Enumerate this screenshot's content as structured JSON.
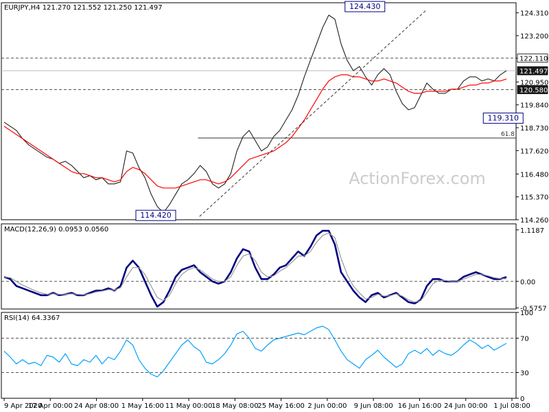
{
  "chart_data": [
    {
      "type": "line",
      "panel": "price",
      "title": "EURJPY,H4  121.270 121.552 121.250 121.497",
      "watermark": "ActionForex.com",
      "ylim": [
        114.26,
        124.8
      ],
      "y_ticks": [
        124.31,
        123.2,
        122.11,
        120.95,
        119.84,
        118.73,
        117.62,
        116.48,
        115.37,
        114.26
      ],
      "x_labels": [
        "9 Apr 2020",
        "17 Apr 00:00",
        "24 Apr 08:00",
        "1 May 16:00",
        "11 May 00:00",
        "18 May 08:00",
        "25 May 16:00",
        "2 Jun 00:00",
        "9 Jun 08:00",
        "16 Jun 16:00",
        "24 Jun 00:00",
        "1 Jul 08:00"
      ],
      "series": [
        {
          "role": "price",
          "values": [
            119.0,
            118.8,
            118.6,
            118.2,
            117.9,
            117.7,
            117.5,
            117.3,
            117.2,
            117.0,
            117.1,
            116.9,
            116.6,
            116.3,
            116.4,
            116.2,
            116.3,
            116.0,
            116.0,
            116.1,
            117.6,
            117.5,
            116.8,
            116.3,
            115.5,
            114.9,
            114.6,
            115.0,
            115.5,
            116.0,
            116.2,
            116.5,
            116.9,
            116.6,
            116.0,
            115.8,
            116.0,
            116.5,
            117.6,
            118.3,
            118.6,
            118.1,
            117.6,
            117.8,
            118.3,
            118.6,
            119.1,
            119.6,
            120.3,
            121.2,
            122.0,
            122.8,
            123.6,
            124.2,
            124.0,
            122.8,
            122.0,
            121.5,
            121.7,
            121.2,
            120.8,
            121.3,
            121.6,
            121.3,
            120.5,
            119.9,
            119.6,
            119.7,
            120.3,
            120.9,
            120.6,
            120.4,
            120.4,
            120.6,
            120.6,
            121.0,
            121.2,
            121.2,
            121.0,
            121.1,
            121.0,
            121.3,
            121.5
          ]
        },
        {
          "role": "moving-average",
          "color": "#ff0000",
          "values": [
            118.8,
            118.6,
            118.4,
            118.2,
            118.0,
            117.8,
            117.6,
            117.4,
            117.2,
            117.0,
            116.8,
            116.6,
            116.5,
            116.5,
            116.4,
            116.3,
            116.3,
            116.2,
            116.1,
            116.2,
            116.6,
            116.8,
            116.7,
            116.5,
            116.2,
            115.9,
            115.8,
            115.8,
            115.8,
            115.9,
            116.0,
            116.1,
            116.2,
            116.2,
            116.1,
            116.0,
            116.1,
            116.3,
            116.6,
            116.9,
            117.2,
            117.3,
            117.4,
            117.5,
            117.6,
            117.8,
            118.0,
            118.3,
            118.7,
            119.1,
            119.6,
            120.1,
            120.6,
            121.0,
            121.2,
            121.3,
            121.3,
            121.2,
            121.2,
            121.1,
            121.0,
            121.0,
            121.1,
            121.0,
            120.9,
            120.7,
            120.5,
            120.4,
            120.4,
            120.5,
            120.5,
            120.5,
            120.5,
            120.6,
            120.6,
            120.7,
            120.8,
            120.8,
            120.9,
            120.9,
            121.0,
            121.0,
            121.1
          ]
        }
      ],
      "horizontal_lines": [
        {
          "value": 122.11,
          "style": "dashed"
        },
        {
          "value": 121.497,
          "style": "solid",
          "color": "#bbbbbb"
        },
        {
          "value": 120.58,
          "style": "dashed"
        }
      ],
      "price_labels": [
        {
          "value": 122.11,
          "text": "122.110",
          "dark": false
        },
        {
          "value": 121.497,
          "text": "121.497",
          "dark": true
        },
        {
          "value": 120.58,
          "text": "120.580",
          "dark": true
        }
      ],
      "fib_level": {
        "value": 118.23,
        "label": "61.8",
        "x_start": 38.2
      },
      "trendline": {
        "from": {
          "x": 38.5,
          "y": 114.42
        },
        "to": {
          "x": 82.5,
          "y": 124.43
        }
      },
      "annotations": [
        {
          "text": "124.430",
          "x": 74.5,
          "y": 124.43,
          "anchor": "end"
        },
        {
          "text": "114.420",
          "x": 30.0,
          "y": 114.42,
          "anchor": "middle"
        },
        {
          "text": "119.310",
          "x": 97.5,
          "y": 119.31,
          "anchor": "middle"
        }
      ]
    },
    {
      "type": "line",
      "panel": "macd",
      "title": "MACD(12,26,9) 0.0953 0.0560",
      "ylim": [
        -0.6,
        1.25
      ],
      "y_ticks": [
        1.1187,
        0.0,
        -0.5757
      ],
      "y_tick_labels": [
        "1.1187",
        "0.00",
        "-0.5757"
      ],
      "series": [
        {
          "role": "macd",
          "color": "#000080",
          "values": [
            0.1,
            0.05,
            -0.1,
            -0.15,
            -0.2,
            -0.25,
            -0.3,
            -0.3,
            -0.25,
            -0.3,
            -0.28,
            -0.25,
            -0.3,
            -0.3,
            -0.25,
            -0.2,
            -0.2,
            -0.15,
            -0.2,
            -0.1,
            0.3,
            0.45,
            0.3,
            0.0,
            -0.3,
            -0.55,
            -0.45,
            -0.2,
            0.1,
            0.25,
            0.3,
            0.35,
            0.2,
            0.1,
            0.0,
            -0.05,
            0.0,
            0.2,
            0.5,
            0.7,
            0.65,
            0.3,
            0.05,
            0.05,
            0.15,
            0.3,
            0.35,
            0.5,
            0.65,
            0.55,
            0.75,
            1.0,
            1.1,
            1.1,
            0.8,
            0.2,
            0.0,
            -0.2,
            -0.35,
            -0.45,
            -0.3,
            -0.25,
            -0.35,
            -0.3,
            -0.25,
            -0.35,
            -0.45,
            -0.48,
            -0.4,
            -0.1,
            0.05,
            0.05,
            0.0,
            0.0,
            0.0,
            0.1,
            0.15,
            0.2,
            0.15,
            0.1,
            0.05,
            0.05,
            0.095
          ]
        },
        {
          "role": "signal",
          "color": "#999999",
          "values": [
            0.1,
            0.08,
            0.0,
            -0.08,
            -0.14,
            -0.2,
            -0.25,
            -0.28,
            -0.27,
            -0.28,
            -0.28,
            -0.27,
            -0.28,
            -0.29,
            -0.27,
            -0.23,
            -0.21,
            -0.18,
            -0.19,
            -0.14,
            0.1,
            0.3,
            0.3,
            0.15,
            -0.1,
            -0.35,
            -0.42,
            -0.3,
            -0.05,
            0.15,
            0.25,
            0.3,
            0.25,
            0.15,
            0.05,
            0.0,
            0.0,
            0.1,
            0.35,
            0.55,
            0.6,
            0.45,
            0.2,
            0.1,
            0.12,
            0.22,
            0.3,
            0.42,
            0.55,
            0.55,
            0.65,
            0.85,
            1.0,
            1.05,
            0.95,
            0.5,
            0.15,
            -0.1,
            -0.25,
            -0.38,
            -0.35,
            -0.28,
            -0.32,
            -0.31,
            -0.27,
            -0.32,
            -0.4,
            -0.45,
            -0.42,
            -0.25,
            -0.05,
            0.02,
            0.02,
            0.0,
            0.0,
            0.05,
            0.1,
            0.15,
            0.15,
            0.12,
            0.08,
            0.06,
            0.056
          ]
        }
      ],
      "horizontal_lines": [
        {
          "value": 0.0,
          "style": "dashed"
        }
      ]
    },
    {
      "type": "line",
      "panel": "rsi",
      "title": "RSI(14) 64.3367",
      "ylim": [
        0,
        100
      ],
      "y_ticks": [
        100,
        70,
        30,
        0
      ],
      "series": [
        {
          "role": "rsi",
          "color": "#00a0ff",
          "values": [
            55,
            48,
            40,
            45,
            40,
            42,
            38,
            50,
            48,
            42,
            52,
            40,
            38,
            45,
            42,
            50,
            40,
            48,
            45,
            55,
            68,
            62,
            45,
            35,
            28,
            25,
            32,
            42,
            52,
            62,
            68,
            60,
            55,
            42,
            40,
            45,
            52,
            62,
            75,
            78,
            70,
            58,
            55,
            62,
            68,
            70,
            72,
            74,
            76,
            74,
            78,
            82,
            84,
            80,
            68,
            55,
            45,
            40,
            35,
            45,
            50,
            56,
            48,
            42,
            36,
            40,
            52,
            56,
            52,
            58,
            50,
            56,
            52,
            50,
            55,
            62,
            68,
            64,
            58,
            62,
            56,
            60,
            64
          ]
        }
      ],
      "horizontal_lines": [
        {
          "value": 70,
          "style": "dashed"
        },
        {
          "value": 30,
          "style": "dashed"
        }
      ]
    }
  ]
}
